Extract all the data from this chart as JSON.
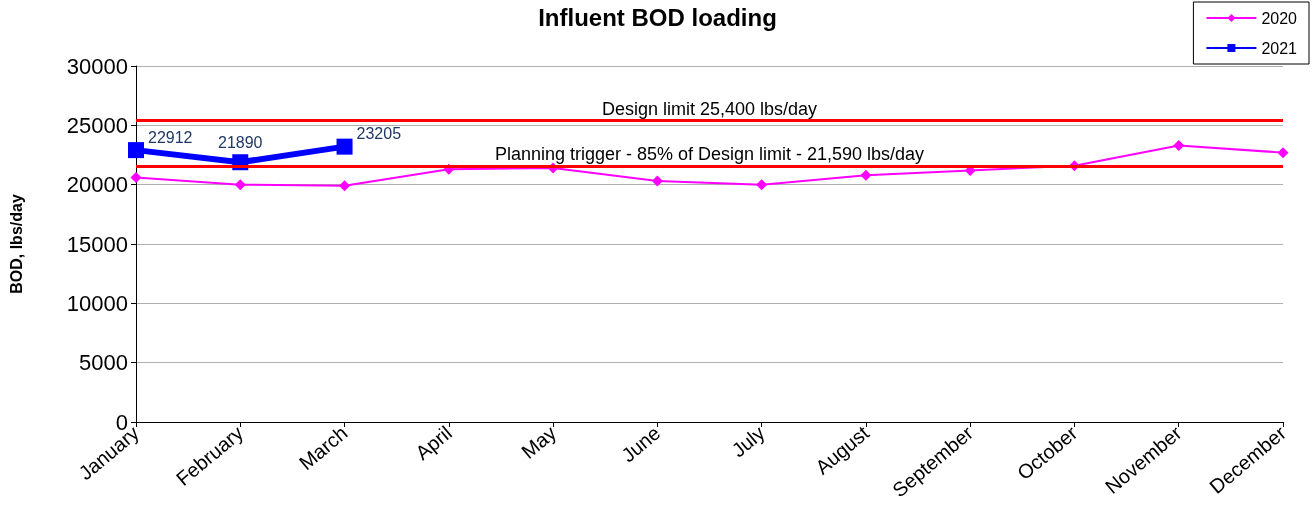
{
  "chart_data": {
    "type": "line",
    "title": "Influent BOD loading",
    "ylabel": "BOD, lbs/day",
    "categories": [
      "January",
      "February",
      "March",
      "April",
      "May",
      "June",
      "July",
      "August",
      "September",
      "October",
      "November",
      "December"
    ],
    "series": [
      {
        "name": "2020",
        "color": "#ff00ff",
        "marker": "diamond",
        "values": [
          20600,
          20000,
          19900,
          21300,
          21400,
          20300,
          20000,
          20800,
          21200,
          21600,
          23300,
          22700
        ]
      },
      {
        "name": "2021",
        "color": "#0000ff",
        "marker": "square",
        "values": [
          22912,
          21890,
          23205,
          null,
          null,
          null,
          null,
          null,
          null,
          null,
          null,
          null
        ],
        "value_labels": [
          "22912",
          "21890",
          "23205",
          null,
          null,
          null,
          null,
          null,
          null,
          null,
          null,
          null
        ]
      }
    ],
    "ylim": [
      0,
      30000
    ],
    "yticks": [
      0,
      5000,
      10000,
      15000,
      20000,
      25000,
      30000
    ],
    "grid": "y",
    "legend": "top right",
    "ref_lines": [
      {
        "axis": "y",
        "value": 25400,
        "label": "Design limit 25,400 lbs/day",
        "color": "#ff0000"
      },
      {
        "axis": "y",
        "value": 21590,
        "label": "Planning trigger - 85% of Design limit - 21,590 lbs/day",
        "color": "#ff0000"
      }
    ]
  }
}
